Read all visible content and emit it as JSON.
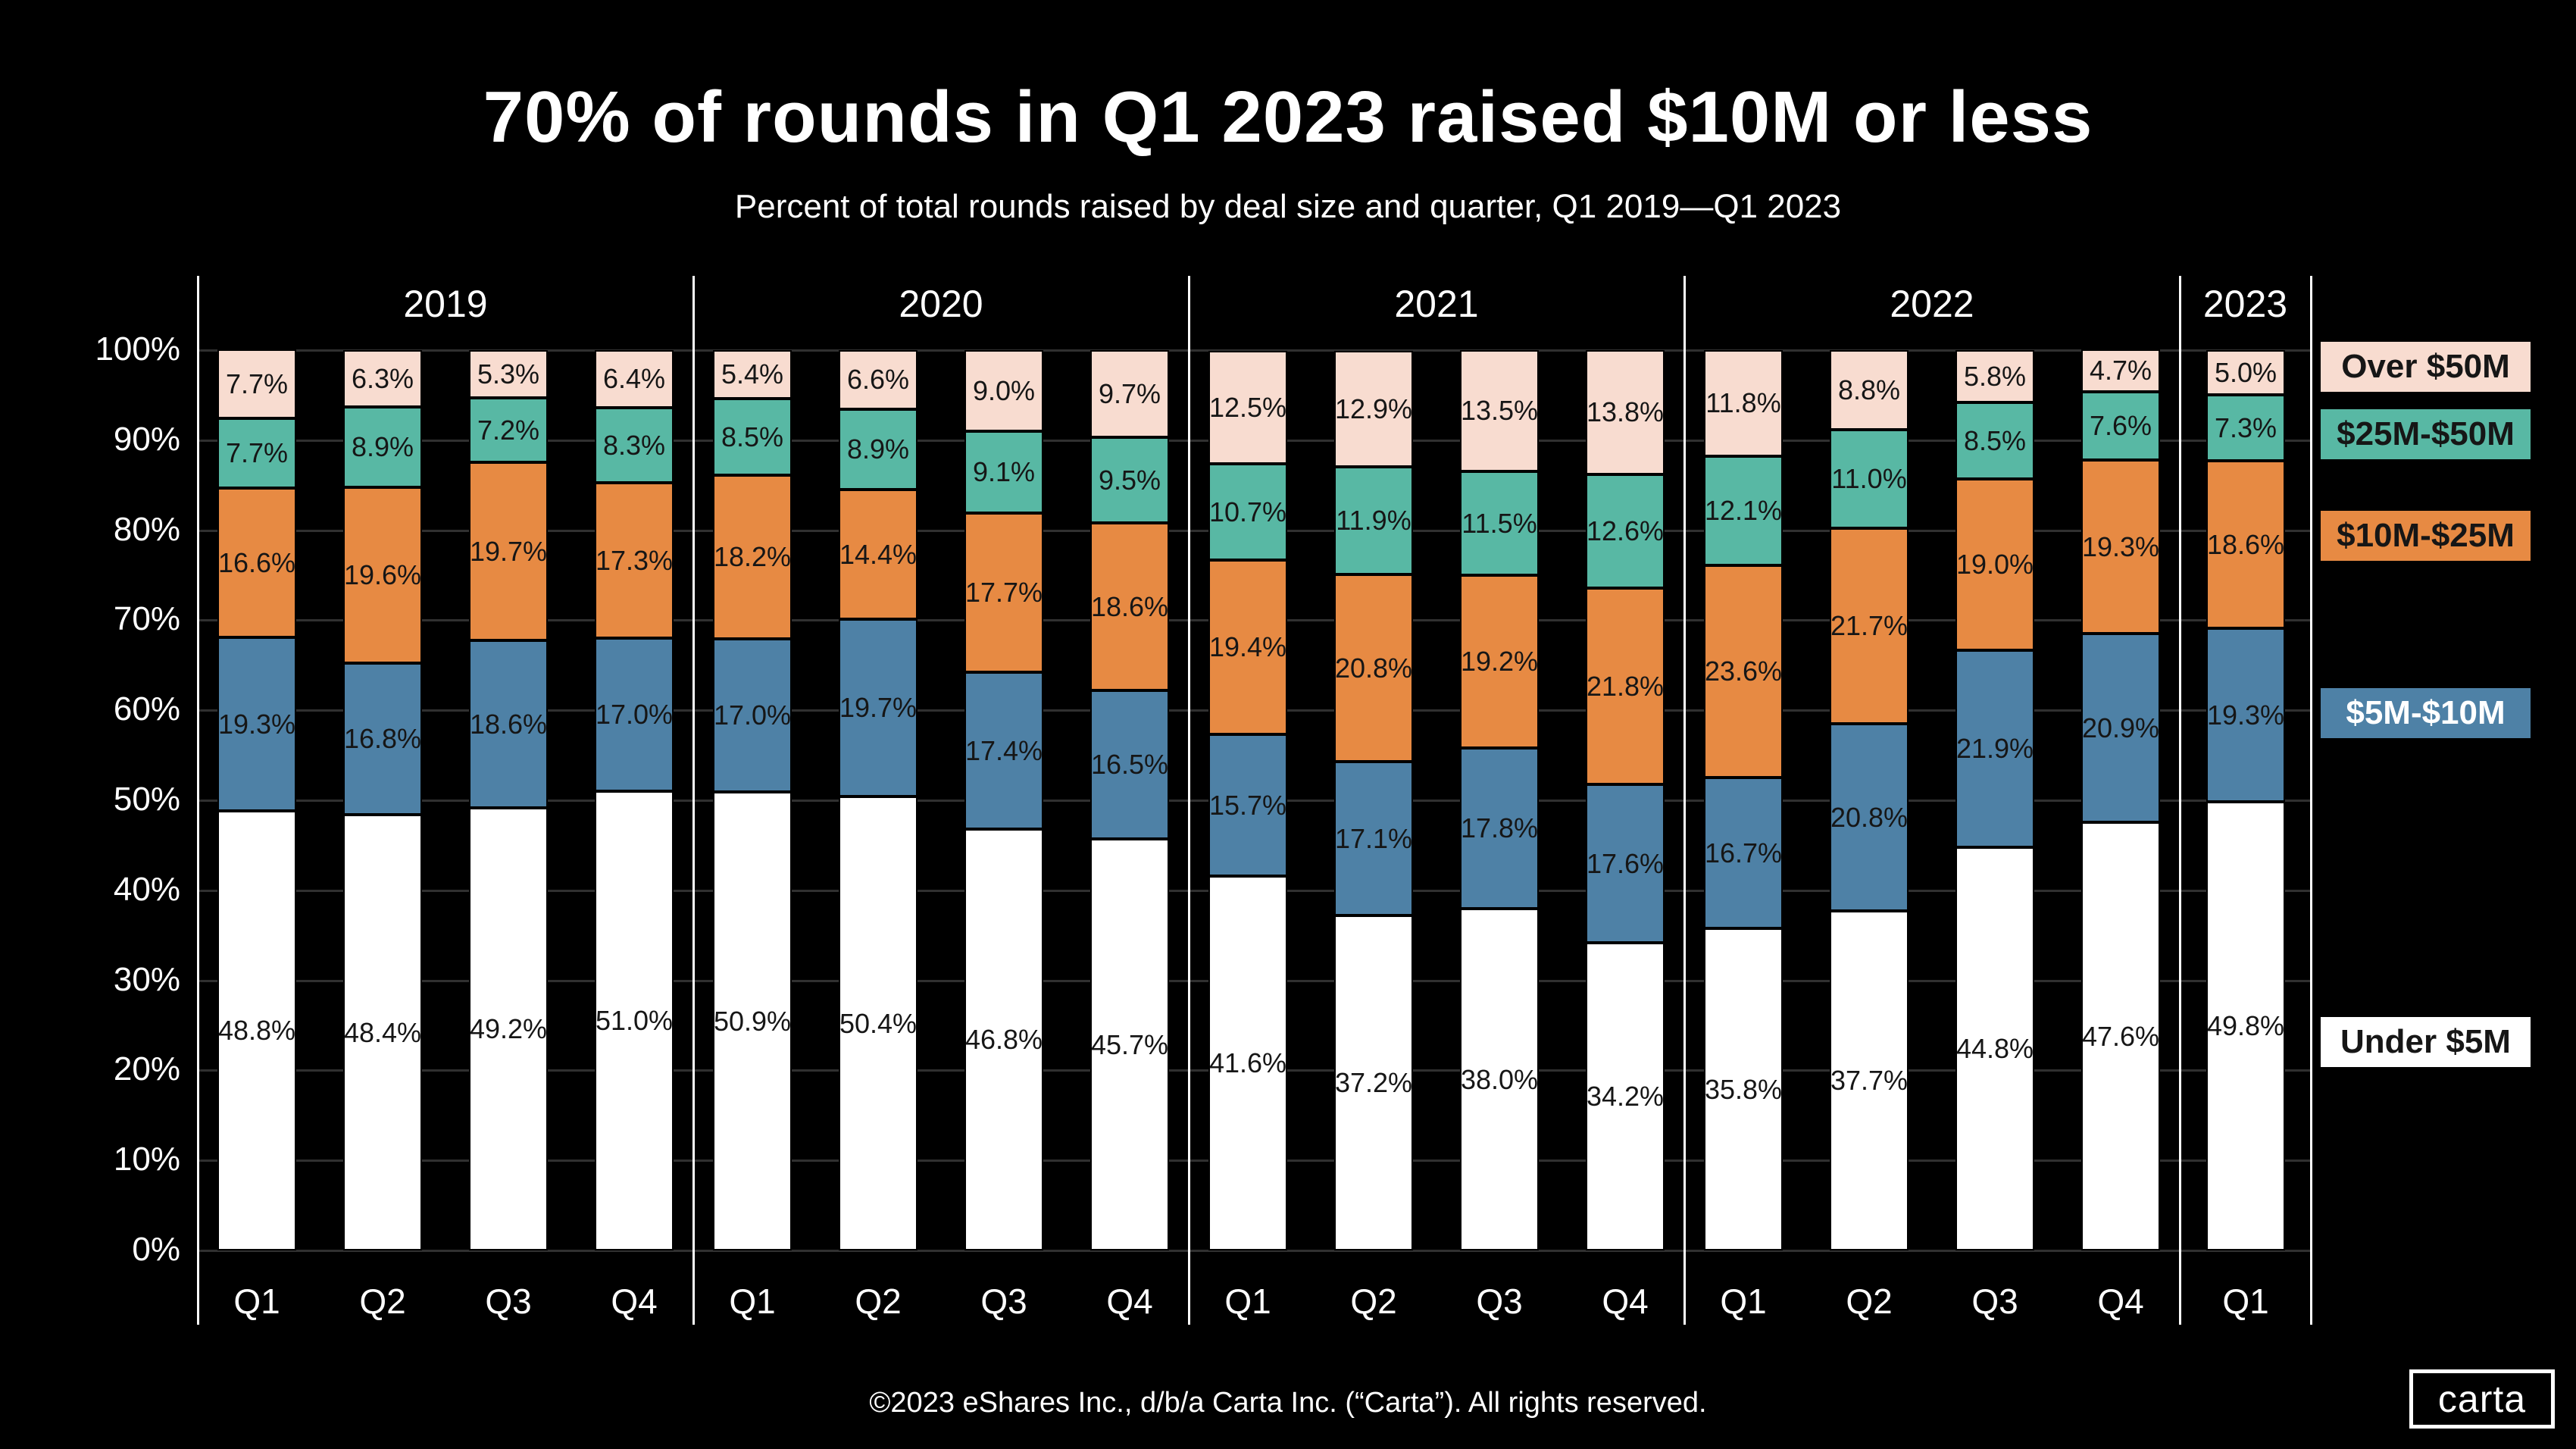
{
  "footer": "©2023 eShares Inc., d/b/a Carta Inc. (“Carta”). All rights reserved.",
  "logo_text": "carta",
  "y_axis_ticks": [
    "100%",
    "90%",
    "80%",
    "70%",
    "60%",
    "50%",
    "40%",
    "30%",
    "20%",
    "10%",
    "0%"
  ],
  "chart_data": {
    "type": "bar",
    "stacked": true,
    "title": "70% of rounds in Q1 2023 raised $10M or less",
    "subtitle": "Percent of total rounds raised by deal size and quarter, Q1 2019—Q1 2023",
    "unit": "%",
    "ylim": [
      0,
      100
    ],
    "grid": true,
    "legend_position": "right",
    "background_color": "#000000",
    "gridline_color": "#303030",
    "year_groups": [
      {
        "year": "2019",
        "quarters": [
          "Q1",
          "Q2",
          "Q3",
          "Q4"
        ]
      },
      {
        "year": "2020",
        "quarters": [
          "Q1",
          "Q2",
          "Q3",
          "Q4"
        ]
      },
      {
        "year": "2021",
        "quarters": [
          "Q1",
          "Q2",
          "Q3",
          "Q4"
        ]
      },
      {
        "year": "2022",
        "quarters": [
          "Q1",
          "Q2",
          "Q3",
          "Q4"
        ]
      },
      {
        "year": "2023",
        "quarters": [
          "Q1"
        ]
      }
    ],
    "categories": [
      "Q1 2019",
      "Q2 2019",
      "Q3 2019",
      "Q4 2019",
      "Q1 2020",
      "Q2 2020",
      "Q3 2020",
      "Q4 2020",
      "Q1 2021",
      "Q2 2021",
      "Q3 2021",
      "Q4 2021",
      "Q1 2022",
      "Q2 2022",
      "Q3 2022",
      "Q4 2022",
      "Q1 2023"
    ],
    "series": [
      {
        "name": "Under $5M",
        "slug": "under-5m",
        "color": "#ffffff",
        "label_color": "#161616",
        "values": [
          48.8,
          48.4,
          49.2,
          51.0,
          50.9,
          50.4,
          46.8,
          45.7,
          41.6,
          37.2,
          38.0,
          34.2,
          35.8,
          37.7,
          44.8,
          47.6,
          49.8
        ]
      },
      {
        "name": "$5M-$10M",
        "slug": "5m-10m",
        "color": "#4e81a6",
        "label_color": "#161616",
        "values": [
          19.3,
          16.8,
          18.6,
          17.0,
          17.0,
          19.7,
          17.4,
          16.5,
          15.7,
          17.1,
          17.8,
          17.6,
          16.7,
          20.8,
          21.9,
          20.9,
          19.3
        ]
      },
      {
        "name": "$10M-$25M",
        "slug": "10m-25m",
        "color": "#e78a43",
        "label_color": "#161616",
        "values": [
          16.6,
          19.6,
          19.7,
          17.3,
          18.2,
          14.4,
          17.7,
          18.6,
          19.4,
          20.8,
          19.2,
          21.8,
          23.6,
          21.7,
          19.0,
          19.3,
          18.6
        ]
      },
      {
        "name": "$25M-$50M",
        "slug": "25m-50m",
        "color": "#58b8a4",
        "label_color": "#161616",
        "values": [
          7.7,
          8.9,
          7.2,
          8.3,
          8.5,
          8.9,
          9.1,
          9.5,
          10.7,
          11.9,
          11.5,
          12.6,
          12.1,
          11.0,
          8.5,
          7.6,
          7.3
        ]
      },
      {
        "name": "Over $50M",
        "slug": "over-50m",
        "color": "#f8dcd0",
        "label_color": "#161616",
        "values": [
          7.7,
          6.3,
          5.3,
          6.4,
          5.4,
          6.6,
          9.0,
          9.7,
          12.5,
          12.9,
          13.5,
          13.8,
          11.8,
          8.8,
          5.8,
          4.7,
          5.0
        ]
      }
    ],
    "legend": [
      {
        "label": "Over $50M",
        "color": "#f8dcd0",
        "text_color": "#161616"
      },
      {
        "label": "$25M-$50M",
        "color": "#58b8a4",
        "text_color": "#161616"
      },
      {
        "label": "$10M-$25M",
        "color": "#e78a43",
        "text_color": "#161616"
      },
      {
        "label": "$5M-$10M",
        "color": "#4e81a6",
        "text_color": "#ffffff"
      },
      {
        "label": "Under $5M",
        "color": "#ffffff",
        "text_color": "#161616"
      }
    ]
  }
}
